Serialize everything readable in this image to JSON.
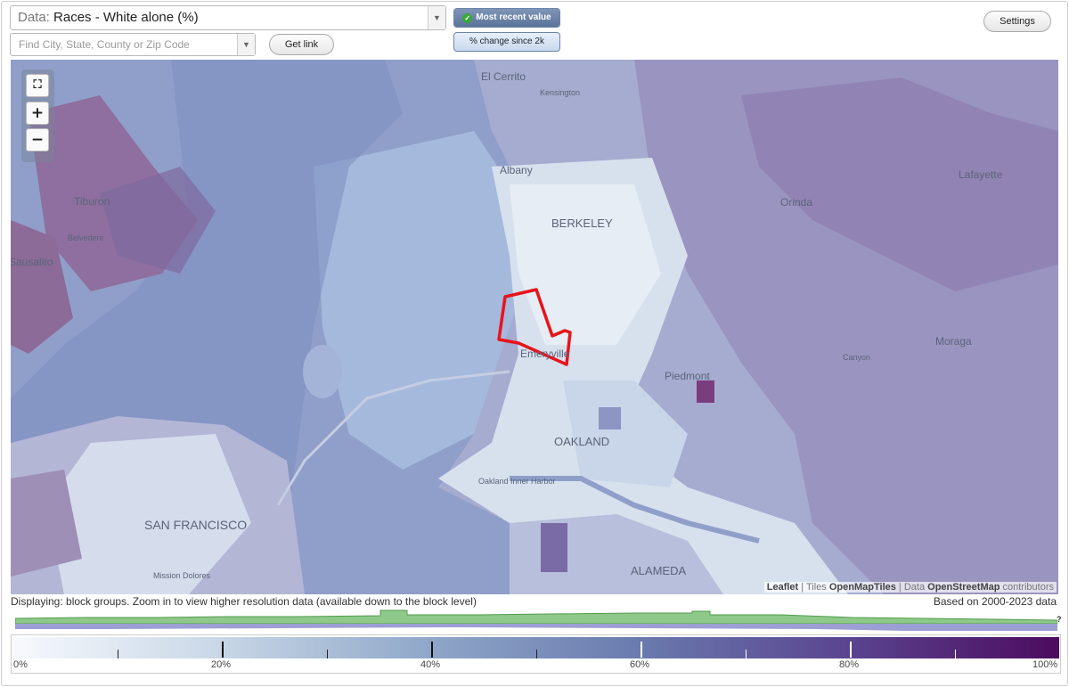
{
  "controls": {
    "data_prefix": "Data:",
    "data_value": "Races - White alone (%)",
    "search_placeholder": "Find City, State, County or Zip Code",
    "get_link": "Get link",
    "most_recent": "Most recent value",
    "pct_change": "% change since 2k",
    "settings": "Settings"
  },
  "map": {
    "labels": {
      "el_cerrito": "El Cerrito",
      "kensington": "Kensington",
      "albany": "Albany",
      "berkeley": "BERKELEY",
      "tiburon": "Tiburon",
      "belvedere": "Belvedere",
      "sausalito": "Sausalito",
      "orinda": "Orinda",
      "lafayette": "Lafayette",
      "moraga": "Moraga",
      "canyon": "Canyon",
      "piedmont": "Piedmont",
      "emeryville": "Emeryville",
      "oakland": "OAKLAND",
      "oakland_inner_harbor": "Oakland Inner Harbor",
      "san_francisco": "SAN FRANCISCO",
      "alameda": "ALAMEDA",
      "mission_dolores": "Mission Dolores"
    },
    "zoom_controls": {
      "fullscreen": "⛶",
      "zoom_in": "+",
      "zoom_out": "−"
    },
    "attribution": {
      "leaflet": "Leaflet",
      "tiles_prefix": "Tiles",
      "tiles": "OpenMapTiles",
      "data_prefix": "Data",
      "data": "OpenStreetMap",
      "contributors": "contributors"
    },
    "colors": {
      "water": "#8f9fc9",
      "highlight": "#e8141b"
    }
  },
  "footer": {
    "display_note": "Displaying: block groups. Zoom in to view higher resolution data (available down to the block level)",
    "range_note": "Based on 2000-2023 data",
    "hist_help": "?"
  },
  "legend": {
    "ticks": [
      "0%",
      "20%",
      "40%",
      "60%",
      "80%",
      "100%"
    ],
    "colors": [
      "#f7f9fd",
      "#c7d6e6",
      "#8ea6c8",
      "#6a7aae",
      "#5a4490",
      "#4c0b5e"
    ]
  }
}
